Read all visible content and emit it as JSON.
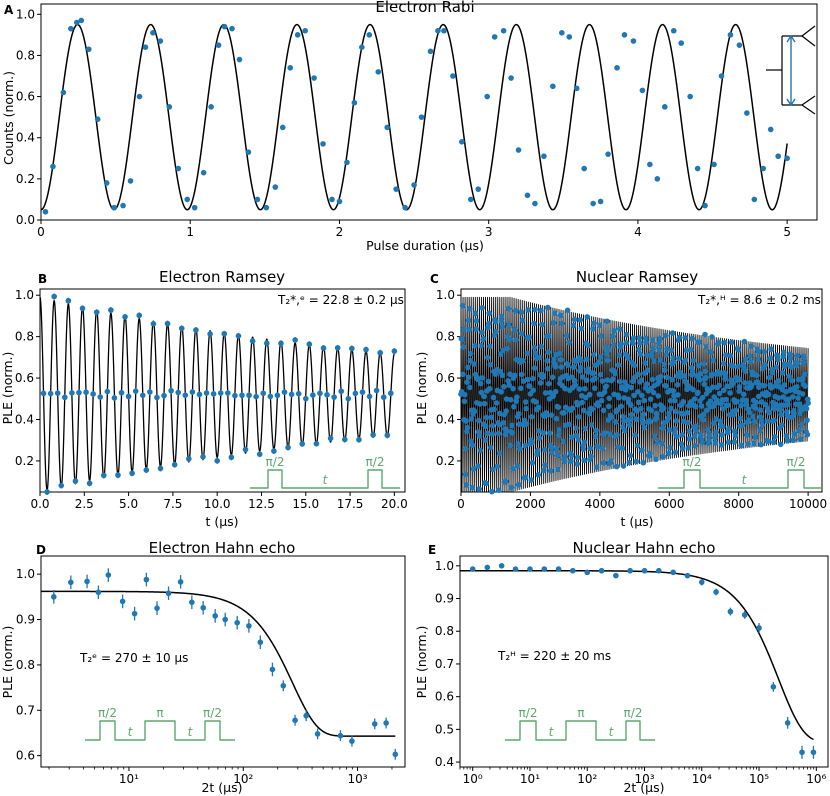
{
  "figure": {
    "panel_letters": [
      "A",
      "B",
      "C",
      "D",
      "E"
    ]
  },
  "colors": {
    "data": "#1f77b4",
    "fit": "#000000",
    "pulse": "#5aa86e",
    "inset": "#1f77b4"
  },
  "chart_data": [
    {
      "id": "A",
      "type": "scatter",
      "title": "Electron Rabi",
      "xlabel": "Pulse duration (µs)",
      "ylabel": "Counts (norm.)",
      "xlim": [
        0,
        5.2
      ],
      "ylim": [
        0,
        1.05
      ],
      "xticks": [
        0,
        1,
        2,
        3,
        4,
        5
      ],
      "xtick_labels": [
        "0",
        "1",
        "2",
        "3",
        "4",
        "5"
      ],
      "yticks": [
        0,
        0.2,
        0.4,
        0.6,
        0.8,
        1.0
      ],
      "ytick_labels": [
        "0.0",
        "0.2",
        "0.4",
        "0.6",
        "0.8",
        "1.0"
      ],
      "fit": {
        "model": "1 - cos(2πx/T)",
        "period_us": 0.49,
        "ymin": 0.05,
        "ymax": 0.95,
        "x_end": 5.0
      },
      "x": [
        0.03,
        0.08,
        0.15,
        0.2,
        0.24,
        0.27,
        0.32,
        0.38,
        0.44,
        0.49,
        0.55,
        0.6,
        0.66,
        0.7,
        0.75,
        0.8,
        0.86,
        0.92,
        0.98,
        1.03,
        1.09,
        1.14,
        1.19,
        1.23,
        1.28,
        1.33,
        1.39,
        1.45,
        1.51,
        1.57,
        1.62,
        1.67,
        1.72,
        1.77,
        1.83,
        1.89,
        1.95,
        2.0,
        2.05,
        2.1,
        2.15,
        2.2,
        2.26,
        2.32,
        2.38,
        2.44,
        2.5,
        2.55,
        2.61,
        2.66,
        2.7,
        2.76,
        2.82,
        2.88,
        2.93,
        2.99,
        3.04,
        3.1,
        3.15,
        3.2,
        3.26,
        3.31,
        3.37,
        3.43,
        3.49,
        3.54,
        3.59,
        3.64,
        3.7,
        3.75,
        3.8,
        3.86,
        3.91,
        3.97,
        4.03,
        4.08,
        4.13,
        4.18,
        4.24,
        4.29,
        4.35,
        4.4,
        4.45,
        4.51,
        4.56,
        4.62,
        4.68,
        4.73,
        4.78,
        4.84,
        4.89,
        4.94,
        5.0
      ],
      "y": [
        0.04,
        0.26,
        0.62,
        0.93,
        0.96,
        0.97,
        0.83,
        0.49,
        0.18,
        0.06,
        0.07,
        0.19,
        0.6,
        0.84,
        0.91,
        0.87,
        0.55,
        0.25,
        0.1,
        0.06,
        0.23,
        0.55,
        0.85,
        0.94,
        0.93,
        0.78,
        0.33,
        0.1,
        0.06,
        0.16,
        0.45,
        0.74,
        0.9,
        0.92,
        0.69,
        0.37,
        0.1,
        0.09,
        0.28,
        0.57,
        0.84,
        0.9,
        0.72,
        0.45,
        0.15,
        0.06,
        0.17,
        0.5,
        0.82,
        0.92,
        0.92,
        0.7,
        0.38,
        0.1,
        0.15,
        0.6,
        0.89,
        0.92,
        0.69,
        0.34,
        0.12,
        0.08,
        0.31,
        0.65,
        0.91,
        0.89,
        0.64,
        0.25,
        0.08,
        0.09,
        0.32,
        0.74,
        0.9,
        0.87,
        0.63,
        0.27,
        0.2,
        0.55,
        0.92,
        0.86,
        0.6,
        0.25,
        0.07,
        0.27,
        0.7,
        0.9,
        0.85,
        0.52,
        0.1,
        0.25,
        0.44,
        0.31,
        0.3
      ]
    },
    {
      "id": "B",
      "type": "scatter",
      "title": "Electron Ramsey",
      "xlabel": "t (µs)",
      "ylabel": "PLE (norm.)",
      "xlim": [
        0,
        20.6
      ],
      "ylim": [
        0.05,
        1.03
      ],
      "xticks": [
        0,
        2.5,
        5,
        7.5,
        10,
        12.5,
        15,
        17.5,
        20
      ],
      "xtick_labels": [
        "0.0",
        "2.5",
        "5.0",
        "7.5",
        "10.0",
        "12.5",
        "15.0",
        "17.5",
        "20.0"
      ],
      "yticks": [
        0.2,
        0.4,
        0.6,
        0.8,
        1.0
      ],
      "ytick_labels": [
        "0.2",
        "0.4",
        "0.6",
        "0.8",
        "1.0"
      ],
      "annotation": "T₂*,ᵉ = 22.8 ± 0.2 µs",
      "fit": {
        "model": "damped cosine",
        "center": 0.52,
        "amplitude": 0.47,
        "frequency_MHz": 1.25,
        "T2_us": 22.8,
        "x_end": 20.0
      },
      "pulse_sequence": {
        "labels": [
          "π/2",
          "t",
          "π/2"
        ]
      }
    },
    {
      "id": "C",
      "type": "scatter",
      "title": "Nuclear Ramsey",
      "xlabel": "t (µs)",
      "ylabel": "PLE (norm.)",
      "xlim": [
        0,
        10400
      ],
      "ylim": [
        0.05,
        1.03
      ],
      "xticks": [
        0,
        2000,
        4000,
        6000,
        8000,
        10000
      ],
      "xtick_labels": [
        "0",
        "2000",
        "4000",
        "6000",
        "8000",
        "10000"
      ],
      "yticks": [
        0.2,
        0.4,
        0.6,
        0.8,
        1.0
      ],
      "ytick_labels": [
        "0.2",
        "0.4",
        "0.6",
        "0.8",
        "1.0"
      ],
      "annotation": "T₂*,ᴴ = 8.6 ± 0.2 ms",
      "fit": {
        "model": "damped cosine",
        "center": 0.52,
        "amplitude": 0.46,
        "T2_us": 8600,
        "x_end": 10000
      },
      "pulse_sequence": {
        "labels": [
          "π/2",
          "t",
          "π/2"
        ]
      }
    },
    {
      "id": "D",
      "type": "scatter",
      "title": "Electron Hahn echo",
      "xlabel": "2t (µs)",
      "ylabel": "PLE (norm.)",
      "xscale": "log",
      "xlim": [
        1.7,
        2600
      ],
      "ylim": [
        0.575,
        1.04
      ],
      "xticks": [
        10,
        100,
        1000
      ],
      "xtick_labels": [
        "10¹",
        "10²",
        "10³"
      ],
      "yticks": [
        0.6,
        0.7,
        0.8,
        0.9,
        1.0
      ],
      "ytick_labels": [
        "0.6",
        "0.7",
        "0.8",
        "0.9",
        "1.0"
      ],
      "annotation": "T₂ᵉ = 270 ± 10 µs",
      "fit": {
        "model": "stretched exponential decay",
        "high": 0.962,
        "low": 0.643,
        "T2_us": 270,
        "n": 2
      },
      "x": [
        2.2,
        3.1,
        4.3,
        5.4,
        6.6,
        8.8,
        11.2,
        14.2,
        17.6,
        22.2,
        28.3,
        35.5,
        44.6,
        56.8,
        69.5,
        88.5,
        112,
        141,
        180,
        224,
        284,
        355,
        447,
        708,
        893,
        1413,
        1778,
        2138
      ],
      "y": [
        0.95,
        0.982,
        0.984,
        0.96,
        0.998,
        0.94,
        0.913,
        0.988,
        0.925,
        0.958,
        0.983,
        0.938,
        0.926,
        0.908,
        0.9,
        0.893,
        0.886,
        0.85,
        0.79,
        0.754,
        0.678,
        0.688,
        0.648,
        0.644,
        0.632,
        0.67,
        0.672,
        0.603
      ],
      "yerr": [
        0.015,
        0.015,
        0.015,
        0.015,
        0.015,
        0.015,
        0.015,
        0.015,
        0.015,
        0.015,
        0.015,
        0.015,
        0.015,
        0.015,
        0.015,
        0.015,
        0.015,
        0.015,
        0.015,
        0.012,
        0.012,
        0.012,
        0.012,
        0.012,
        0.012,
        0.012,
        0.012,
        0.012
      ],
      "pulse_sequence": {
        "labels": [
          "π/2",
          "t",
          "π",
          "t",
          "π/2"
        ]
      }
    },
    {
      "id": "E",
      "type": "scatter",
      "title": "Nuclear Hahn echo",
      "xlabel": "2t (µs)",
      "ylabel": "PLE (norm.)",
      "xscale": "log",
      "xlim": [
        0.6,
        1600000
      ],
      "ylim": [
        0.385,
        1.03
      ],
      "xticks": [
        1,
        10,
        100,
        1000,
        10000,
        100000,
        1000000
      ],
      "xtick_labels": [
        "10⁰",
        "10¹",
        "10²",
        "10³",
        "10⁴",
        "10⁵",
        "10⁶"
      ],
      "yticks": [
        0.4,
        0.5,
        0.6,
        0.7,
        0.8,
        0.9,
        1.0
      ],
      "ytick_labels": [
        "0.4",
        "0.5",
        "0.6",
        "0.7",
        "0.8",
        "0.9",
        "1.0"
      ],
      "annotation": "T₂ᴴ = 220 ± 20 ms",
      "fit": {
        "model": "stretched exponential decay",
        "high": 0.985,
        "low": 0.46,
        "T2_us": 220000,
        "n": 1
      },
      "x": [
        1,
        1.8,
        3.2,
        5.6,
        10,
        17.8,
        31.6,
        56,
        100,
        178,
        316,
        562,
        1000,
        1778,
        3162,
        5623,
        10000,
        17783,
        31623,
        56234,
        100000,
        177828,
        316228,
        562341,
        891251
      ],
      "y": [
        0.99,
        0.995,
        1.0,
        0.99,
        0.99,
        0.99,
        0.99,
        0.985,
        0.98,
        0.985,
        0.97,
        0.985,
        0.985,
        0.985,
        0.98,
        0.97,
        0.95,
        0.92,
        0.86,
        0.85,
        0.81,
        0.63,
        0.52,
        0.43,
        0.43
      ],
      "yerr": [
        0.005,
        0.005,
        0.005,
        0.005,
        0.005,
        0.005,
        0.005,
        0.005,
        0.005,
        0.005,
        0.005,
        0.005,
        0.005,
        0.005,
        0.005,
        0.008,
        0.01,
        0.01,
        0.012,
        0.012,
        0.015,
        0.015,
        0.018,
        0.02,
        0.02
      ],
      "pulse_sequence": {
        "labels": [
          "π/2",
          "t",
          "π",
          "t",
          "π/2"
        ]
      }
    }
  ]
}
